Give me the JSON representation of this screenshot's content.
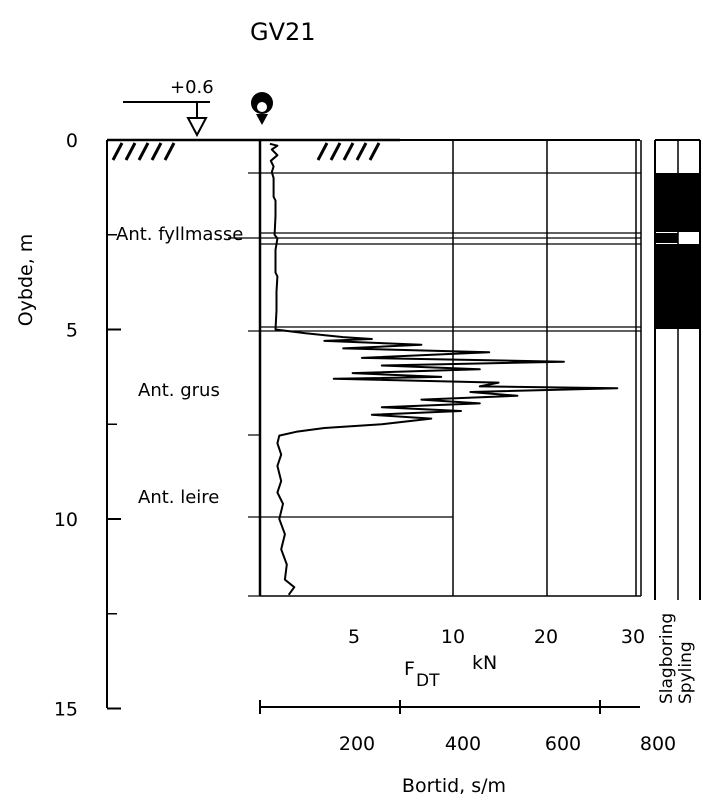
{
  "title": "GV21",
  "water_level_label": "+0.6",
  "depth_axis": {
    "label": "Oybde, m",
    "ticks": [
      "0",
      "5",
      "10",
      "15"
    ],
    "tick_values": [
      0,
      5,
      10,
      15
    ]
  },
  "layers": [
    {
      "label": "Ant. fyllmasse"
    },
    {
      "label": "Ant. grus"
    },
    {
      "label": "Ant. leire"
    }
  ],
  "force_axis": {
    "label_main": "F",
    "label_sub": "DT",
    "unit": "kN",
    "ticks": [
      "5",
      "10",
      "20",
      "30"
    ]
  },
  "time_axis": {
    "label": "Bortid, s/m",
    "ticks": [
      "200",
      "400",
      "600",
      "800"
    ]
  },
  "side_columns": {
    "col1_label": "Slagboring",
    "col2_label": "Spyling"
  },
  "borehole_symbol": "drop-pin-icon",
  "max_depth_m": 12.2,
  "colors": {
    "ink": "#000000",
    "paper": "#ffffff"
  },
  "chart_data": {
    "type": "line",
    "title": "GV21",
    "ylabel": "Oybde, m",
    "xlabel": "F DT kN",
    "ylim": [
      15,
      0
    ],
    "series": [
      {
        "values": [
          [
            0.1,
            0.1
          ],
          [
            0.15,
            0.5
          ],
          [
            0.25,
            0.2
          ],
          [
            0.4,
            0.5
          ],
          [
            0.55,
            0.15
          ],
          [
            0.7,
            0.3
          ],
          [
            0.85,
            0.2
          ],
          [
            1.0,
            0.3
          ],
          [
            1.2,
            0.3
          ],
          [
            1.5,
            0.3
          ],
          [
            1.6,
            0.4
          ],
          [
            2.0,
            0.4
          ],
          [
            2.5,
            0.35
          ],
          [
            2.6,
            0.5
          ],
          [
            2.9,
            0.4
          ],
          [
            3.5,
            0.4
          ],
          [
            3.6,
            0.5
          ],
          [
            4.0,
            0.45
          ],
          [
            4.5,
            0.45
          ],
          [
            5.0,
            0.4
          ],
          [
            5.1,
            2.0
          ],
          [
            5.2,
            4.0
          ],
          [
            5.25,
            5.5
          ],
          [
            5.3,
            3.0
          ],
          [
            5.4,
            8.0
          ],
          [
            5.5,
            4.0
          ],
          [
            5.6,
            13.0
          ],
          [
            5.75,
            5.0
          ],
          [
            5.85,
            21.0
          ],
          [
            5.95,
            6.0
          ],
          [
            6.05,
            12.0
          ],
          [
            6.15,
            4.5
          ],
          [
            6.25,
            9.0
          ],
          [
            6.3,
            3.5
          ],
          [
            6.4,
            14.0
          ],
          [
            6.5,
            12.0
          ],
          [
            6.55,
            27.0
          ],
          [
            6.65,
            11.0
          ],
          [
            6.75,
            16.0
          ],
          [
            6.85,
            8.0
          ],
          [
            6.95,
            12.0
          ],
          [
            7.05,
            6.0
          ],
          [
            7.15,
            10.0
          ],
          [
            7.25,
            5.5
          ],
          [
            7.35,
            8.5
          ],
          [
            7.5,
            6.0
          ],
          [
            7.6,
            3.0
          ],
          [
            7.7,
            1.5
          ],
          [
            7.8,
            0.6
          ],
          [
            8.0,
            0.5
          ],
          [
            8.3,
            0.7
          ],
          [
            8.6,
            0.5
          ],
          [
            9.0,
            0.7
          ],
          [
            9.3,
            0.5
          ],
          [
            9.6,
            0.8
          ],
          [
            10.0,
            0.6
          ],
          [
            10.4,
            0.9
          ],
          [
            10.8,
            0.7
          ],
          [
            11.2,
            1.0
          ],
          [
            11.6,
            0.9
          ],
          [
            11.8,
            1.4
          ],
          [
            12.0,
            1.1
          ]
        ]
      }
    ]
  }
}
